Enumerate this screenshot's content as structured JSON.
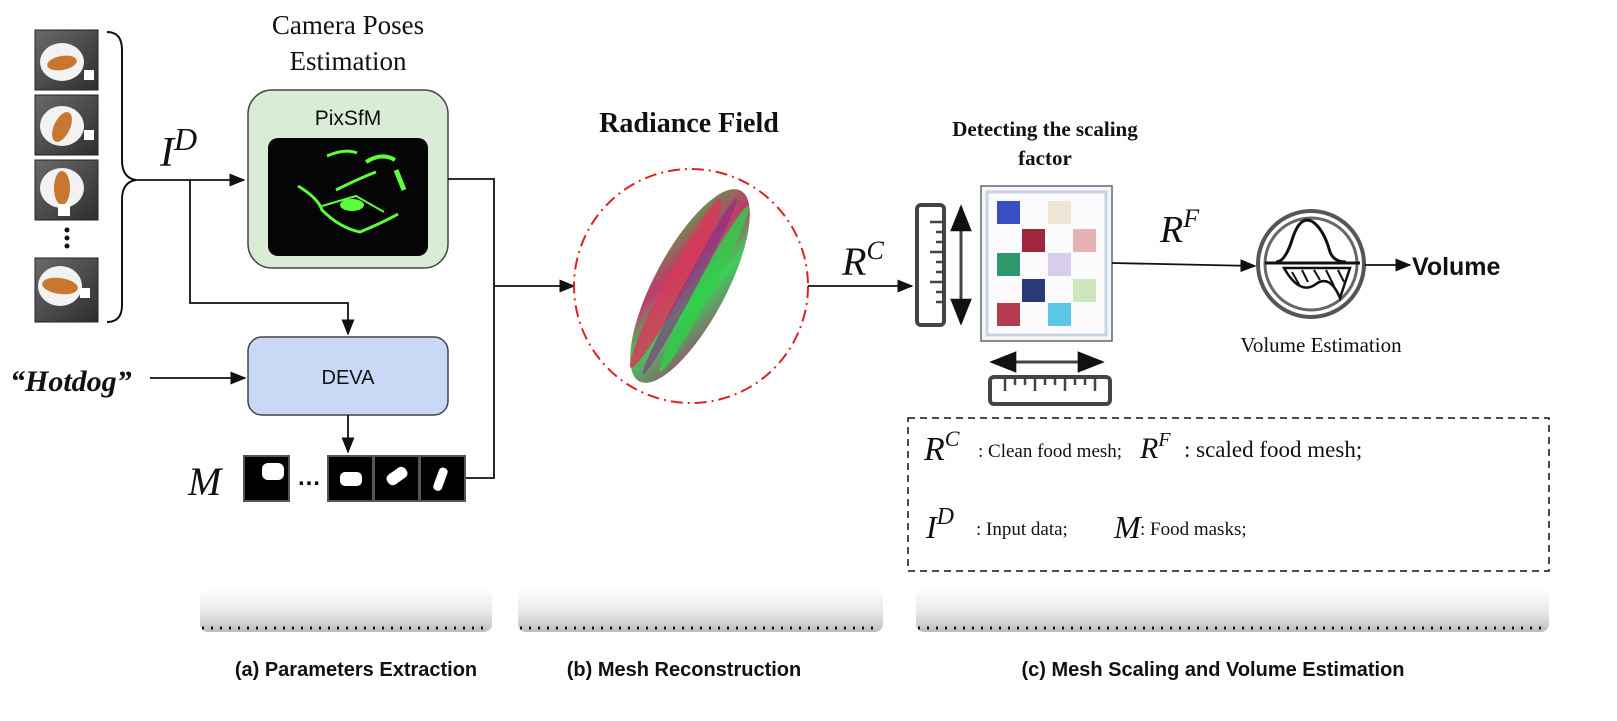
{
  "inputs": {
    "image_symbol_base": "I",
    "image_symbol_sup": "D",
    "text_prompt": "“Hotdog”",
    "mask_symbol": "M",
    "ellipsis": "…"
  },
  "camera_pose": {
    "title_line1": "Camera Poses",
    "title_line2": "Estimation",
    "method": "PixSfM"
  },
  "segmentation": {
    "method": "DEVA"
  },
  "radiance": {
    "title": "Radiance Field"
  },
  "mesh": {
    "symbol_base": "R",
    "symbol_sup": "C"
  },
  "scaling": {
    "title_line1": "Detecting the scaling",
    "title_line2": "factor",
    "symbol_base": "R",
    "symbol_sup": "F"
  },
  "volume": {
    "caption": "Volume Estimation",
    "output_label": "Volume"
  },
  "legend": {
    "rc_desc": ": Clean food mesh;",
    "rf_desc": ":  scaled food mesh;",
    "id_desc": ": Input data;",
    "m_desc": ": Food masks;"
  },
  "stages": {
    "a": "(a) Parameters Extraction",
    "b": "(b) Mesh Reconstruction",
    "c": "(c) Mesh Scaling and Volume Estimation"
  },
  "colors": {
    "pixsfm_box": "#d9ecd5",
    "deva_box": "#c9d8f5",
    "radiance_circle": "#e02020",
    "stage_bar": "#e6e6e6",
    "accent_green": "#5cff3a"
  }
}
